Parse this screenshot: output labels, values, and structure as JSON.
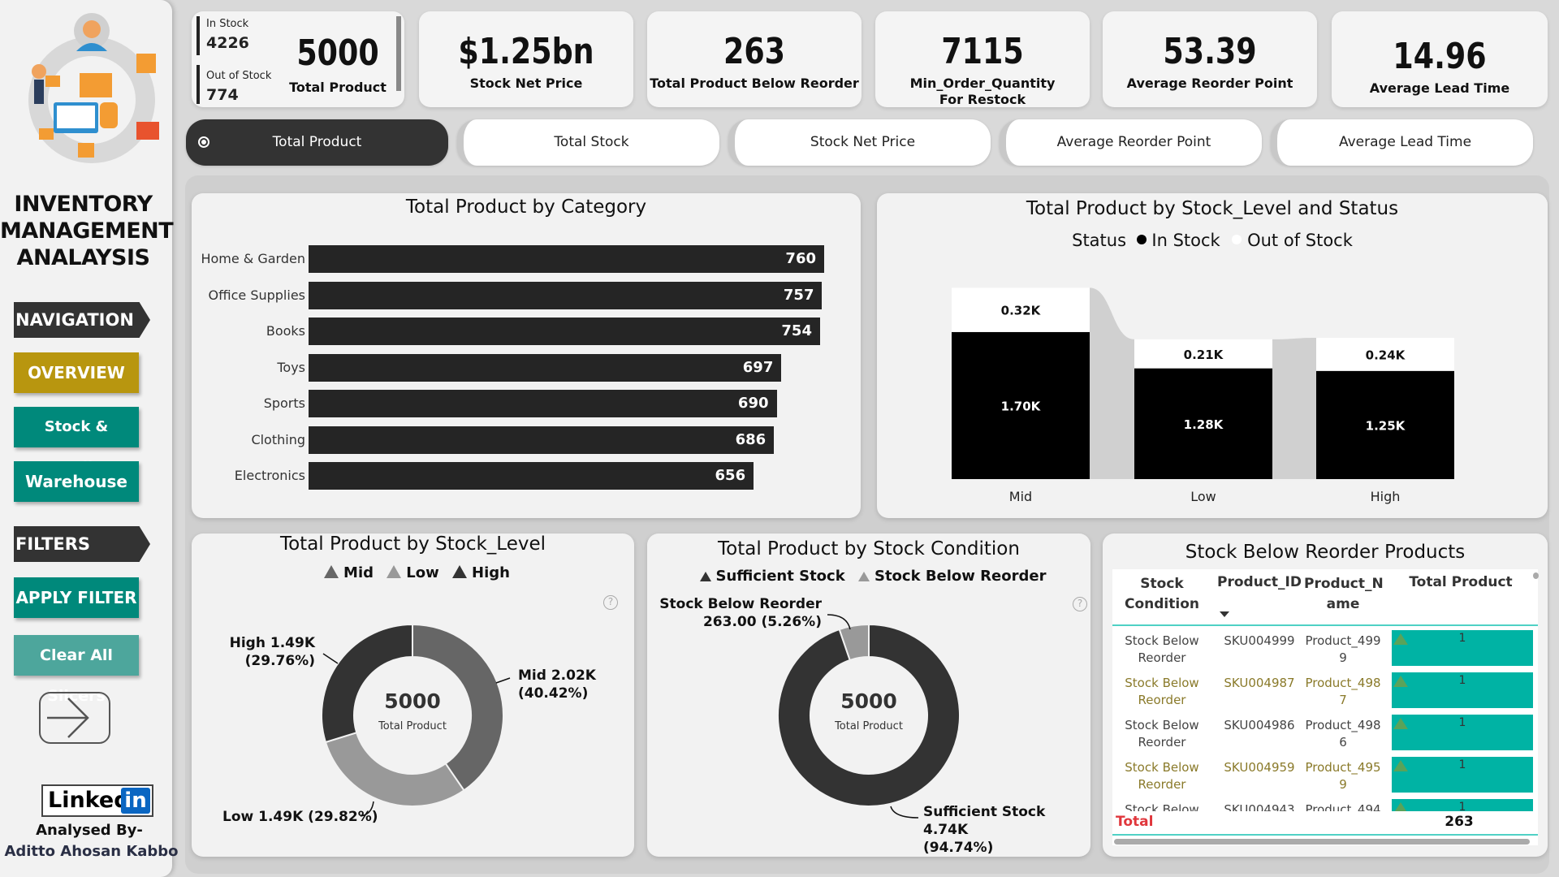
{
  "sidebar": {
    "title_lines": [
      "INVENTORY",
      "MANAGEMENT",
      "ANALAYSIS"
    ],
    "navigation_header": "NAVIGATION",
    "nav_buttons": [
      {
        "label": "OVERVIEW",
        "color": "#b8960f"
      },
      {
        "label": "Stock & supplier",
        "color": "#00897b"
      },
      {
        "label": "Warehouse",
        "color": "#00897b"
      }
    ],
    "filters_header": "FILTERS",
    "filter_buttons": [
      {
        "label": "APPLY FILTER",
        "color": "#00897b"
      },
      {
        "label": "Clear All Slicers",
        "color": "#4da69c"
      }
    ],
    "next_icon": "arrow-right-icon",
    "linkedin": {
      "text": "Linked",
      "badge": "in"
    },
    "analysed_by_label": "Analysed By-",
    "author": "Aditto Ahosan Kabbo"
  },
  "kpis": {
    "stock_split": {
      "in_stock_label": "In Stock",
      "in_stock_value": "4226",
      "out_stock_label": "Out of Stock",
      "out_stock_value": "774"
    },
    "total_product": {
      "value": "5000",
      "label": "Total Product"
    },
    "cards": [
      {
        "value": "$1.25bn",
        "label": "Stock Net Price"
      },
      {
        "value": "263",
        "label": "Total Product Below Reorder"
      },
      {
        "value": "7115",
        "label": "Min_Order_Quantity",
        "label2": "For Restock"
      },
      {
        "value": "53.39",
        "label": "Average Reorder Point"
      },
      {
        "value": "14.96",
        "label": "Average Lead Time"
      }
    ]
  },
  "slicer_tabs": [
    {
      "label": "Total Product",
      "active": true
    },
    {
      "label": "Total Stock",
      "active": false
    },
    {
      "label": "Stock Net Price",
      "active": false
    },
    {
      "label": "Average Reorder Point",
      "active": false
    },
    {
      "label": "Average Lead Time",
      "active": false
    }
  ],
  "chart_data": [
    {
      "type": "bar",
      "orientation": "horizontal",
      "title": "Total Product by Category",
      "categories": [
        "Home & Garden",
        "Office Supplies",
        "Books",
        "Toys",
        "Sports",
        "Clothing",
        "Electronics"
      ],
      "values": [
        760,
        757,
        754,
        697,
        690,
        686,
        656
      ],
      "xlabel": "",
      "ylabel": "",
      "data_labels": [
        "760",
        "757",
        "754",
        "697",
        "690",
        "686",
        "656"
      ],
      "color": "#252525"
    },
    {
      "type": "bar",
      "stacked": true,
      "title": "Total Product by Stock_Level and Status",
      "legend_title": "Status",
      "legend": [
        "In Stock",
        "Out of Stock"
      ],
      "categories": [
        "Mid",
        "Low",
        "High"
      ],
      "series": [
        {
          "name": "In Stock",
          "values": [
            1700,
            1280,
            1250
          ],
          "labels": [
            "1.70K",
            "1.28K",
            "1.25K"
          ],
          "color": "#000000"
        },
        {
          "name": "Out of Stock",
          "values": [
            320,
            210,
            240
          ],
          "labels": [
            "0.32K",
            "0.21K",
            "0.24K"
          ],
          "color": "#ffffff"
        }
      ]
    },
    {
      "type": "pie",
      "donut": true,
      "title": "Total Product by Stock_Level",
      "legend": [
        "Mid",
        "Low",
        "High"
      ],
      "center_value": "5000",
      "center_label": "Total Product",
      "slices": [
        {
          "name": "Mid",
          "value": 2020,
          "percent": 40.42,
          "label": "Mid 2.02K",
          "pct_label": "(40.42%)",
          "color": "#666666"
        },
        {
          "name": "Low",
          "value": 1490,
          "percent": 29.82,
          "label": "Low 1.49K (29.82%)",
          "color": "#999999"
        },
        {
          "name": "High",
          "value": 1490,
          "percent": 29.76,
          "label": "High 1.49K",
          "pct_label": "(29.76%)",
          "color": "#333333"
        }
      ]
    },
    {
      "type": "pie",
      "donut": true,
      "title": "Total Product by Stock Condition",
      "legend": [
        "Sufficient Stock",
        "Stock Below Reorder"
      ],
      "center_value": "5000",
      "center_label": "Total Product",
      "slices": [
        {
          "name": "Sufficient Stock",
          "value": 4740,
          "percent": 94.74,
          "label": "Sufficient Stock 4.74K",
          "pct_label": "(94.74%)",
          "color": "#333333"
        },
        {
          "name": "Stock Below Reorder",
          "value": 263,
          "percent": 5.26,
          "label": "Stock Below Reorder",
          "pct_label": "263.00 (5.26%)",
          "color": "#999999"
        }
      ]
    }
  ],
  "reorder_table": {
    "title": "Stock Below Reorder Products",
    "columns": [
      "Stock Condition",
      "Product_ID",
      "Product_Name",
      "Total Product"
    ],
    "column_display": [
      "Stock\nCondition",
      "Product_ID",
      "Product_N\name",
      "Total Product"
    ],
    "rows": [
      {
        "condition": "Stock Below Reorder",
        "id": "SKU004999",
        "name": "Product_4999",
        "total": "1"
      },
      {
        "condition": "Stock Below Reorder",
        "id": "SKU004987",
        "name": "Product_4987",
        "total": "1"
      },
      {
        "condition": "Stock Below Reorder",
        "id": "SKU004986",
        "name": "Product_4986",
        "total": "1"
      },
      {
        "condition": "Stock Below Reorder",
        "id": "SKU004959",
        "name": "Product_4959",
        "total": "1"
      },
      {
        "condition": "Stock Below Reorder",
        "id": "SKU004943",
        "name": "Product_494",
        "total": "1"
      }
    ],
    "total_label": "Total",
    "total_value": "263",
    "accent": "#00b3a4",
    "alt_row_text": "#8a7a2a"
  }
}
